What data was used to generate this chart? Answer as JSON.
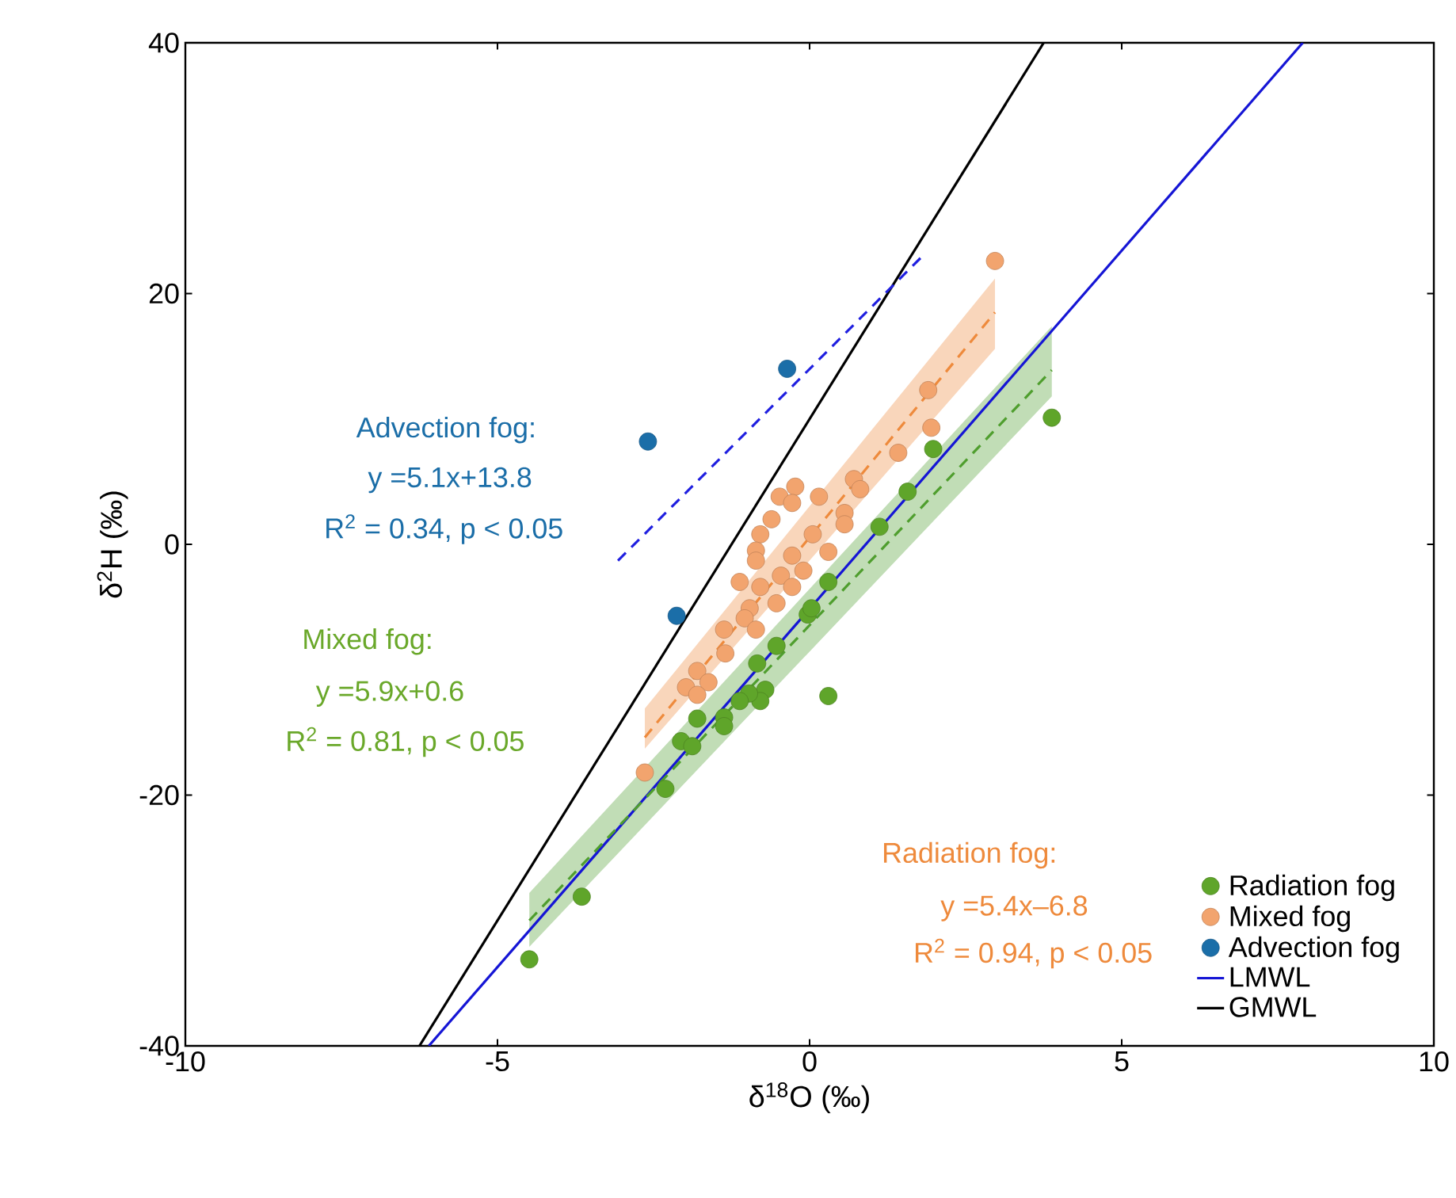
{
  "chart_data": {
    "type": "scatter",
    "xlabel": "δ$^{18}$O (‰)",
    "ylabel": "δ$^{2}$H (‰)",
    "xlim": [
      -10,
      10
    ],
    "ylim": [
      -40,
      40
    ],
    "xticks": [
      -10,
      -5,
      0,
      5,
      10
    ],
    "yticks": [
      -40,
      -20,
      0,
      20,
      40
    ],
    "legend": "bottom right",
    "series": [
      {
        "name": "Radiation fog",
        "marker": "circle",
        "color": "#5fa52a",
        "x": [
          -0.53,
          -0.84,
          -0.71,
          -0.79,
          -0.97,
          -1.12,
          -1.37,
          -1.37,
          -1.8,
          -2.06,
          -1.88,
          -2.31,
          0.3,
          -3.65,
          -4.49,
          -0.03,
          3.88,
          1.98,
          1.57,
          1.12,
          0.3,
          0.03
        ],
        "values": [
          -8.1,
          -9.5,
          -11.6,
          -12.5,
          -11.9,
          -12.5,
          -13.8,
          -14.5,
          -13.9,
          -15.7,
          -16.1,
          -19.5,
          -12.1,
          -28.1,
          -33.1,
          -5.6,
          10.1,
          7.6,
          4.2,
          1.4,
          -3.0,
          -5.1
        ]
      },
      {
        "name": "Mixed fog",
        "marker": "circle",
        "color": "#f2a46e",
        "x": [
          2.97,
          1.9,
          1.95,
          1.42,
          0.71,
          0.81,
          0.56,
          0.56,
          -0.23,
          0.15,
          -0.48,
          -0.28,
          -0.61,
          -0.79,
          0.05,
          -0.86,
          0.3,
          -0.28,
          -0.86,
          -0.1,
          -0.46,
          -1.12,
          -0.79,
          -0.28,
          -0.53,
          -0.96,
          -1.04,
          -0.86,
          -1.37,
          -1.35,
          -1.8,
          -1.62,
          -1.98,
          -1.8,
          -2.64
        ],
        "values": [
          22.6,
          12.3,
          9.3,
          7.3,
          5.2,
          4.4,
          2.5,
          1.6,
          4.6,
          3.8,
          3.8,
          3.3,
          2.0,
          0.8,
          0.8,
          -0.5,
          -0.6,
          -0.9,
          -1.3,
          -2.1,
          -2.5,
          -3.0,
          -3.4,
          -3.4,
          -4.7,
          -5.1,
          -5.9,
          -6.8,
          -6.8,
          -8.7,
          -10.1,
          -11.0,
          -11.4,
          -12.0,
          -18.2
        ]
      },
      {
        "name": "Advection fog",
        "marker": "circle",
        "color": "#1b6ea8",
        "x": [
          -2.59,
          -0.36,
          -2.13
        ],
        "values": [
          8.2,
          14.0,
          -5.7
        ]
      },
      {
        "name": "LMWL",
        "type": "line",
        "marker": "none",
        "line_style": "solid",
        "color": "#1515d5",
        "x": [
          -6.1,
          7.9
        ],
        "values": [
          -40,
          40
        ]
      },
      {
        "name": "GMWL",
        "type": "line",
        "marker": "none",
        "line_style": "solid",
        "color": "#000000",
        "x": [
          -6.25,
          3.75
        ],
        "values": [
          -40,
          40
        ]
      },
      {
        "type": "line",
        "marker": "none",
        "line_style": "dashed",
        "color": "#4f9e2e",
        "x": [
          -4.49,
          3.88
        ],
        "values": [
          -30.0,
          13.9
        ],
        "lower": [
          -32.1,
          11.8
        ],
        "upper": [
          -27.8,
          17.4
        ]
      },
      {
        "type": "line",
        "marker": "none",
        "line_style": "dashed",
        "color": "#ee8a3c",
        "x": [
          -2.64,
          2.97
        ],
        "values": [
          -15.4,
          18.5
        ],
        "lower": [
          -16.3,
          15.6
        ],
        "upper": [
          -13.1,
          21.2
        ]
      },
      {
        "type": "line",
        "marker": "none",
        "line_style": "dashed",
        "color": "#2020e0",
        "x": [
          -3.07,
          1.83
        ],
        "values": [
          -1.3,
          23.1
        ]
      }
    ],
    "annotations": [
      "Advection fog:",
      "y =5.1x+13.8",
      "R$^{2}$ = 0.34, p < 0.05",
      "Mixed fog:",
      "y =5.9x+0.6",
      "R$^{2}$ = 0.81, p < 0.05",
      "Radiation fog:",
      "y =5.4x–6.8",
      "R$^{2}$ = 0.94, p < 0.05"
    ]
  }
}
